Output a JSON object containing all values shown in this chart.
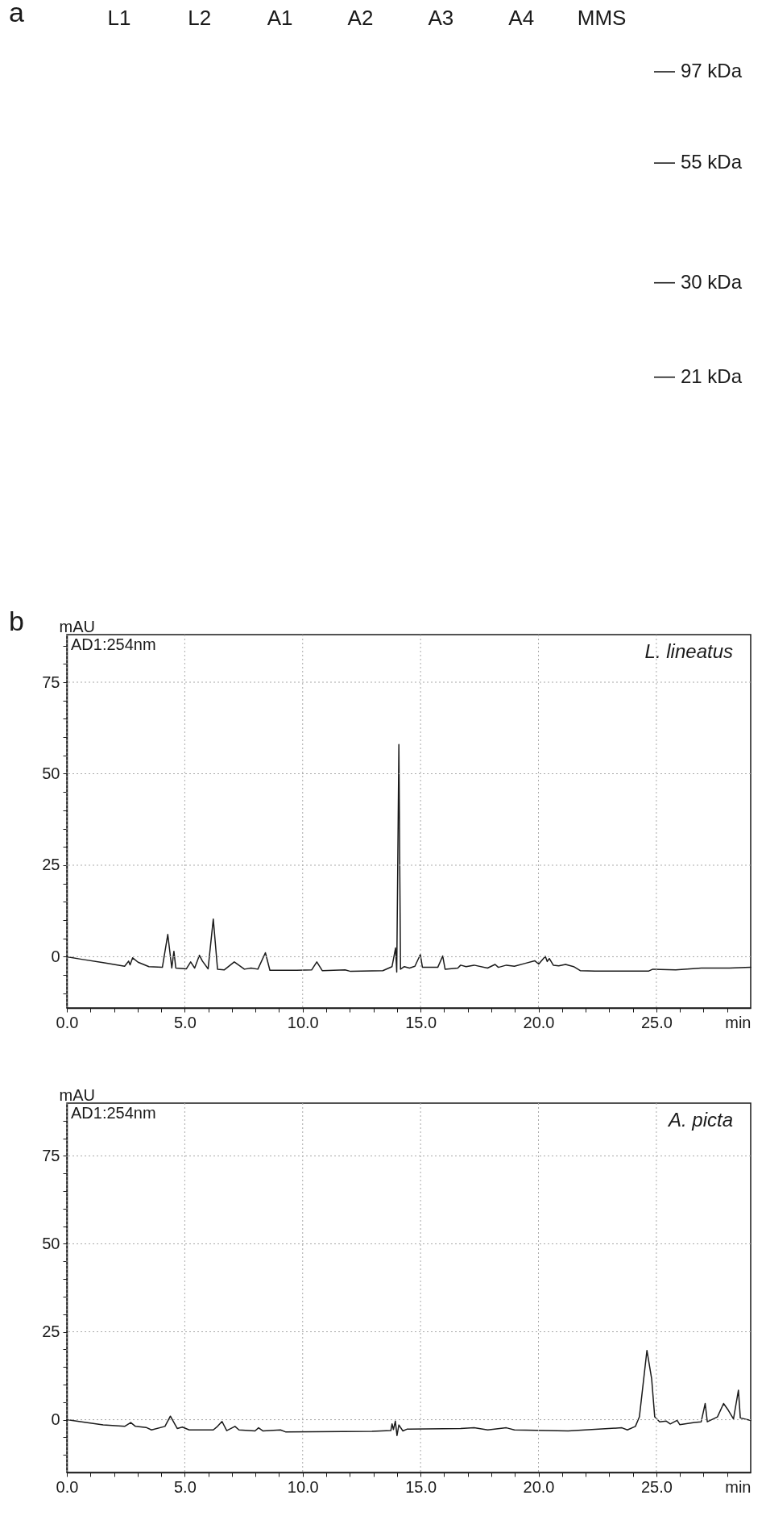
{
  "chart_data": [
    {
      "type": "other",
      "title": "a",
      "categories": [
        "L1",
        "L2",
        "A1",
        "A2",
        "A3",
        "A4",
        "MMS"
      ],
      "annotations": [
        "97 kDa",
        "55 kDa",
        "30 kDa",
        "21 kDa"
      ]
    },
    {
      "type": "line",
      "title": "b",
      "xlabel": "min",
      "ylabel": "mAU",
      "annotations": [
        "AD1:254nm"
      ],
      "x": [
        0,
        0.63,
        1.54,
        2.45,
        2.62,
        2.68,
        2.79,
        3.02,
        3.48,
        4.05,
        4.28,
        4.45,
        4.54,
        4.62,
        5.07,
        5.25,
        5.42,
        5.62,
        5.75,
        5.99,
        6.21,
        6.39,
        6.67,
        7.1,
        7.53,
        7.81,
        8.1,
        8.42,
        8.61,
        9.75,
        10.38,
        10.6,
        10.83,
        11.8,
        12.03,
        13.4,
        13.79,
        13.94,
        13.99,
        14.08,
        14.15,
        14.31,
        14.53,
        14.76,
        14.99,
        15.08,
        15.73,
        15.94,
        16.04,
        16.58,
        16.7,
        16.93,
        17.27,
        17.84,
        18.16,
        18.3,
        18.64,
        18.98,
        19.44,
        19.84,
        20.01,
        20.29,
        20.37,
        20.46,
        20.63,
        20.86,
        21.15,
        21.49,
        21.77,
        22.4,
        24.68,
        24.85,
        25.82,
        26.91,
        28.1,
        29.0
      ],
      "series": [
        {
          "name": "L. lineatus",
          "color": "#1a1a1a",
          "values": [
            0,
            -0.7,
            -1.6,
            -2.6,
            -1.2,
            -2.2,
            -0.3,
            -1.5,
            -2.7,
            -2.9,
            6.1,
            -3.1,
            1.5,
            -3.1,
            -3.3,
            -1.4,
            -3.1,
            0.4,
            -1.2,
            -3.3,
            10.3,
            -3.4,
            -3.6,
            -1.4,
            -3.4,
            -3.1,
            -3.4,
            1.1,
            -3.7,
            -3.7,
            -3.6,
            -1.4,
            -3.8,
            -3.6,
            -4.0,
            -3.8,
            -2.7,
            2.4,
            -4.2,
            58.0,
            -3.4,
            -2.7,
            -3.1,
            -2.6,
            0.6,
            -2.9,
            -2.9,
            0.2,
            -3.4,
            -3.1,
            -2.3,
            -2.7,
            -2.3,
            -3.1,
            -2.1,
            -2.9,
            -2.3,
            -2.6,
            -1.8,
            -1.1,
            -2.0,
            0.1,
            -1.3,
            -0.5,
            -2.3,
            -2.5,
            -2.1,
            -2.7,
            -3.8,
            -3.9,
            -3.9,
            -3.4,
            -3.6,
            -3.1,
            -3.1,
            -2.9
          ]
        }
      ],
      "xlim": [
        0,
        29
      ],
      "ylim": [
        -14,
        88
      ],
      "xticks": [
        {
          "value": 0,
          "label": "0.0"
        },
        {
          "value": 1,
          "label": null
        },
        {
          "value": 2,
          "label": null
        },
        {
          "value": 3,
          "label": null
        },
        {
          "value": 4,
          "label": null
        },
        {
          "value": 5,
          "label": "5.0"
        },
        {
          "value": 6,
          "label": null
        },
        {
          "value": 7,
          "label": null
        },
        {
          "value": 8,
          "label": null
        },
        {
          "value": 9,
          "label": null
        },
        {
          "value": 10,
          "label": "10.0"
        },
        {
          "value": 11,
          "label": null
        },
        {
          "value": 12,
          "label": null
        },
        {
          "value": 13,
          "label": null
        },
        {
          "value": 14,
          "label": null
        },
        {
          "value": 15,
          "label": "15.0"
        },
        {
          "value": 16,
          "label": null
        },
        {
          "value": 17,
          "label": null
        },
        {
          "value": 18,
          "label": null
        },
        {
          "value": 19,
          "label": null
        },
        {
          "value": 20,
          "label": "20.0"
        },
        {
          "value": 21,
          "label": null
        },
        {
          "value": 22,
          "label": null
        },
        {
          "value": 23,
          "label": null
        },
        {
          "value": 24,
          "label": null
        },
        {
          "value": 25,
          "label": "25.0"
        },
        {
          "value": 26,
          "label": null
        },
        {
          "value": 27,
          "label": null
        },
        {
          "value": 28,
          "label": null
        }
      ],
      "yticks": [
        {
          "value": -10,
          "label": null
        },
        {
          "value": -5,
          "label": null
        },
        0,
        {
          "value": 5,
          "label": null
        },
        {
          "value": 10,
          "label": null
        },
        {
          "value": 15,
          "label": null
        },
        {
          "value": 20,
          "label": null
        },
        25,
        {
          "value": 30,
          "label": null
        },
        {
          "value": 35,
          "label": null
        },
        {
          "value": 40,
          "label": null
        },
        {
          "value": 45,
          "label": null
        },
        50,
        {
          "value": 55,
          "label": null
        },
        {
          "value": 60,
          "label": null
        },
        {
          "value": 65,
          "label": null
        },
        {
          "value": 70,
          "label": null
        },
        75,
        {
          "value": 80,
          "label": null
        },
        {
          "value": 85,
          "label": null
        }
      ],
      "grid": true
    },
    {
      "type": "line",
      "xlabel": "min",
      "ylabel": "mAU",
      "annotations": [
        "AD1:254nm"
      ],
      "x": [
        0,
        0.63,
        1.54,
        2.45,
        2.71,
        2.91,
        3.36,
        3.59,
        4.16,
        4.39,
        4.68,
        4.9,
        5.19,
        6.21,
        6.39,
        6.58,
        6.78,
        7.13,
        7.3,
        7.98,
        8.13,
        8.32,
        9.06,
        9.29,
        12.94,
        13.74,
        13.79,
        13.85,
        13.93,
        14.0,
        14.08,
        14.25,
        14.42,
        16.7,
        17.27,
        17.85,
        18.64,
        18.98,
        21.26,
        23.54,
        23.77,
        24.11,
        24.28,
        24.6,
        24.8,
        24.93,
        25.14,
        25.42,
        25.59,
        25.88,
        25.99,
        26.62,
        26.9,
        27.07,
        27.16,
        27.59,
        27.85,
        28.05,
        28.27,
        28.48,
        28.56,
        29.0
      ],
      "series": [
        {
          "name": "A. picta",
          "color": "#1a1a1a",
          "values": [
            0,
            -0.6,
            -1.5,
            -1.9,
            -0.8,
            -1.9,
            -2.2,
            -2.9,
            -1.9,
            1.0,
            -2.5,
            -2.1,
            -2.9,
            -2.9,
            -1.9,
            -0.5,
            -3.1,
            -1.9,
            -2.9,
            -3.2,
            -2.3,
            -3.2,
            -2.9,
            -3.5,
            -3.3,
            -3.1,
            -1.2,
            -2.8,
            -0.4,
            -4.5,
            -1.5,
            -3.2,
            -2.7,
            -2.5,
            -2.3,
            -2.9,
            -2.3,
            -2.9,
            -3.2,
            -2.3,
            -2.9,
            -1.9,
            0.8,
            19.7,
            11.6,
            0.8,
            -0.6,
            -0.4,
            -1.2,
            -0.2,
            -1.4,
            -0.8,
            -0.6,
            4.6,
            -0.6,
            0.8,
            4.6,
            2.7,
            0.2,
            8.4,
            0.5,
            -0.2
          ]
        }
      ],
      "xlim": [
        0,
        29
      ],
      "ylim": [
        -15,
        90
      ],
      "xticks": [
        {
          "value": 0,
          "label": "0.0"
        },
        {
          "value": 1,
          "label": null
        },
        {
          "value": 2,
          "label": null
        },
        {
          "value": 3,
          "label": null
        },
        {
          "value": 4,
          "label": null
        },
        {
          "value": 5,
          "label": "5.0"
        },
        {
          "value": 6,
          "label": null
        },
        {
          "value": 7,
          "label": null
        },
        {
          "value": 8,
          "label": null
        },
        {
          "value": 9,
          "label": null
        },
        {
          "value": 10,
          "label": "10.0"
        },
        {
          "value": 11,
          "label": null
        },
        {
          "value": 12,
          "label": null
        },
        {
          "value": 13,
          "label": null
        },
        {
          "value": 14,
          "label": null
        },
        {
          "value": 15,
          "label": "15.0"
        },
        {
          "value": 16,
          "label": null
        },
        {
          "value": 17,
          "label": null
        },
        {
          "value": 18,
          "label": null
        },
        {
          "value": 19,
          "label": null
        },
        {
          "value": 20,
          "label": "20.0"
        },
        {
          "value": 21,
          "label": null
        },
        {
          "value": 22,
          "label": null
        },
        {
          "value": 23,
          "label": null
        },
        {
          "value": 24,
          "label": null
        },
        {
          "value": 25,
          "label": "25.0"
        },
        {
          "value": 26,
          "label": null
        },
        {
          "value": 27,
          "label": null
        },
        {
          "value": 28,
          "label": null
        }
      ],
      "yticks": [
        {
          "value": -10,
          "label": null
        },
        {
          "value": -5,
          "label": null
        },
        0,
        {
          "value": 5,
          "label": null
        },
        {
          "value": 10,
          "label": null
        },
        {
          "value": 15,
          "label": null
        },
        {
          "value": 20,
          "label": null
        },
        25,
        {
          "value": 30,
          "label": null
        },
        {
          "value": 35,
          "label": null
        },
        {
          "value": 40,
          "label": null
        },
        {
          "value": 45,
          "label": null
        },
        50,
        {
          "value": 55,
          "label": null
        },
        {
          "value": 60,
          "label": null
        },
        {
          "value": 65,
          "label": null
        },
        {
          "value": 70,
          "label": null
        },
        75,
        {
          "value": 80,
          "label": null
        },
        {
          "value": 85,
          "label": null
        }
      ],
      "grid": true
    }
  ]
}
